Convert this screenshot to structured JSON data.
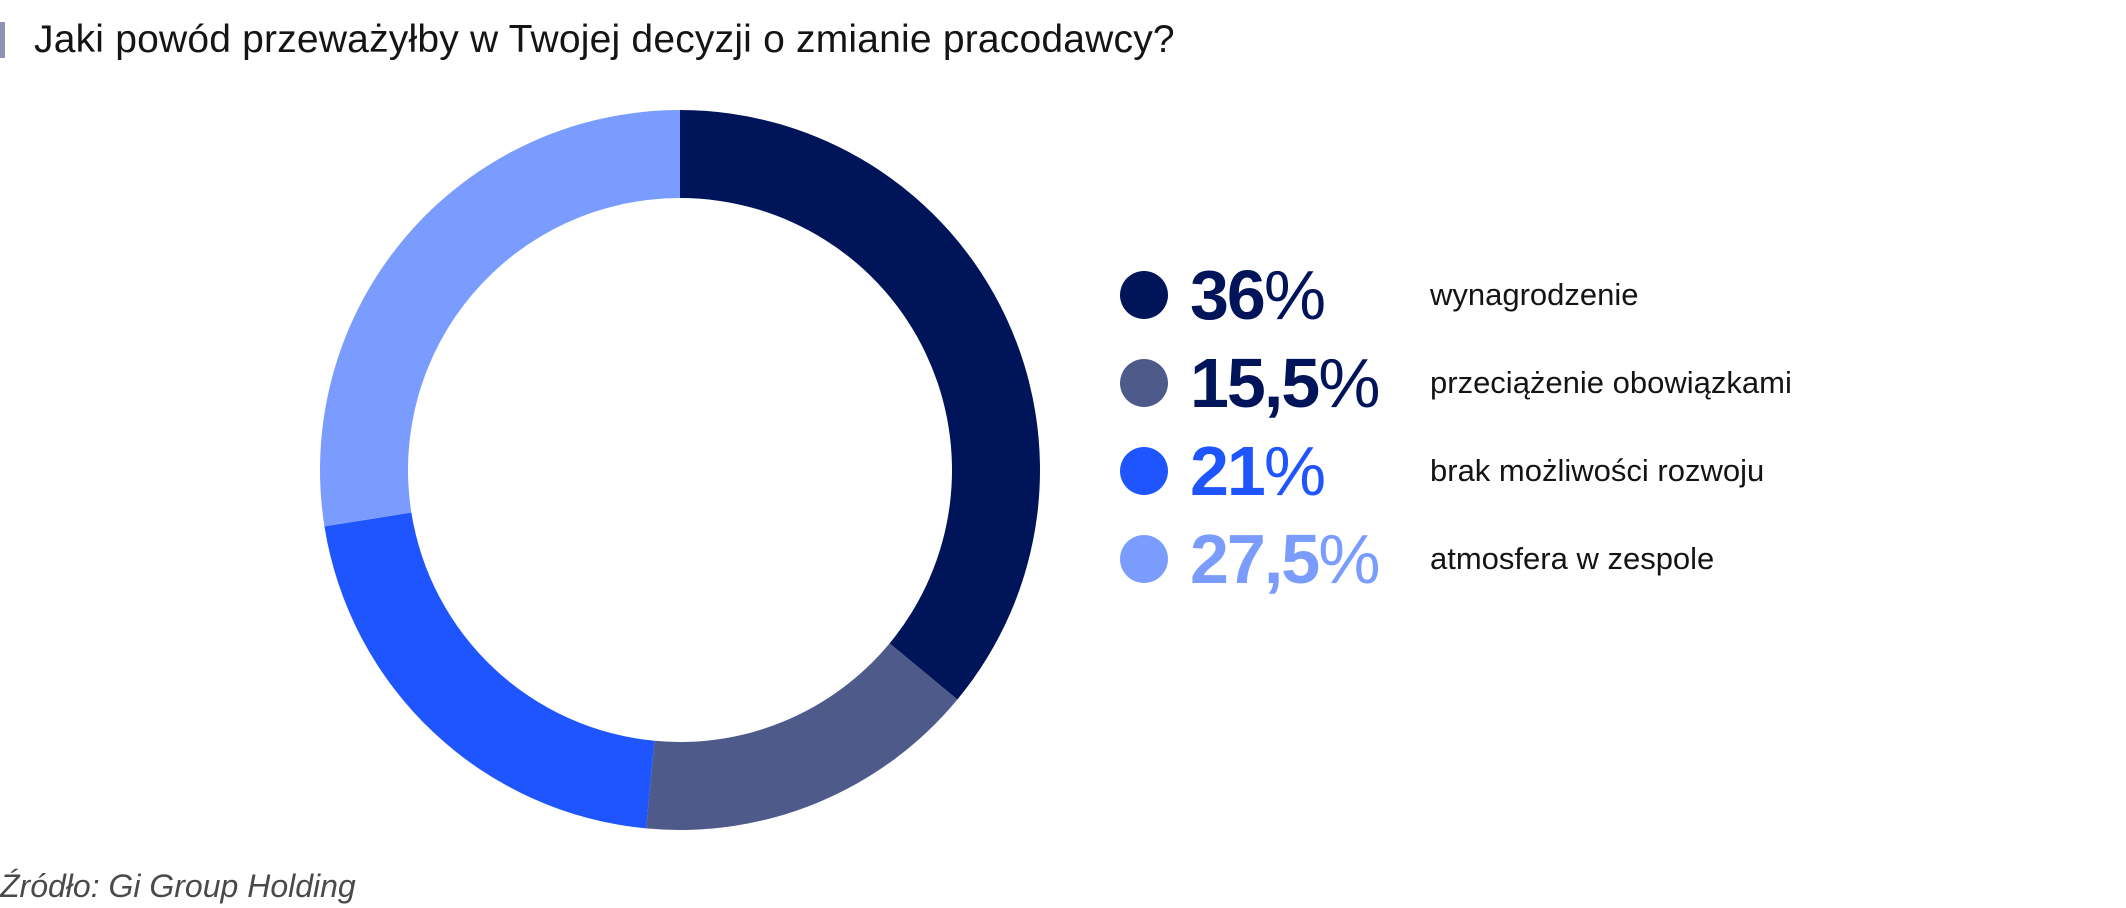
{
  "title": "Jaki powód przeważyłby w Twojej decyzji o zmianie pracodawcy?",
  "source": "Źródło: Gi Group Holding",
  "unit": "%",
  "chart_data": {
    "type": "pie",
    "donut": true,
    "title": "Jaki powód przeważyłby w Twojej decyzji o zmianie pracodawcy?",
    "legend_position": "right",
    "categories": [
      "wynagrodzenie",
      "przeciążenie obowiązkami",
      "brak możliwości rozwoju",
      "atmosfera w zespole"
    ],
    "values": [
      36,
      15.5,
      21,
      27.5
    ],
    "value_labels": [
      "36",
      "15,5",
      "21",
      "27,5"
    ],
    "colors": [
      "#001459",
      "#4d5a8a",
      "#1f55ff",
      "#7a9cff"
    ],
    "value_text_colors": [
      "#001459",
      "#001459",
      "#1f55ff",
      "#7a9cff"
    ]
  }
}
